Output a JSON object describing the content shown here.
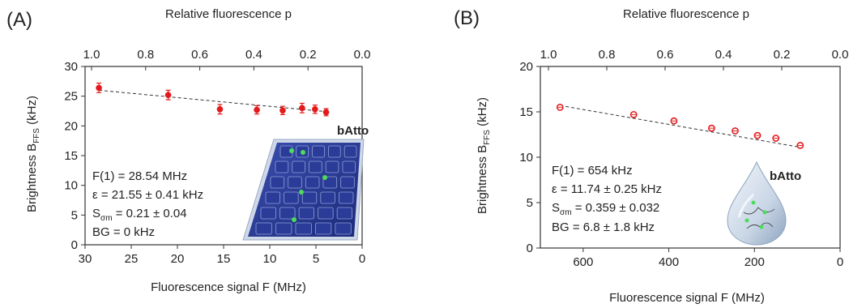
{
  "chart_data": [
    {
      "panel_label": "(A)",
      "type": "scatter",
      "title": "",
      "xlabel": "Fluorescence signal F (MHz)",
      "ylabel_main": "Brightness B",
      "ylabel_sub": "FFS",
      "ylabel_unit": " (kHz)",
      "x2label": "Relative fluorescence p",
      "xlim": [
        30,
        0
      ],
      "ylim": [
        0,
        30
      ],
      "x2lim": [
        1.0,
        0.0
      ],
      "xticks": [
        "30",
        "25",
        "20",
        "15",
        "10",
        "5",
        "0"
      ],
      "xtick_values": [
        30,
        25,
        20,
        15,
        10,
        5,
        0
      ],
      "yticks": [
        "0",
        "5",
        "10",
        "15",
        "20",
        "25",
        "30"
      ],
      "ytick_values": [
        0,
        5,
        10,
        15,
        20,
        25,
        30
      ],
      "x2ticks": [
        "1.0",
        "0.8",
        "0.6",
        "0.4",
        "0.2",
        "0.0"
      ],
      "x2tick_values": [
        1.0,
        0.8,
        0.6,
        0.4,
        0.2,
        0.0
      ],
      "series": [
        {
          "marker": "filled-circle",
          "color": "#e31a1c",
          "x": [
            28.5,
            21.0,
            15.4,
            11.4,
            8.6,
            6.5,
            5.1,
            3.9
          ],
          "y": [
            26.4,
            25.2,
            22.8,
            22.7,
            22.6,
            23.0,
            22.8,
            22.3
          ],
          "yerr": [
            0.8,
            0.8,
            0.8,
            0.7,
            0.7,
            0.8,
            0.7,
            0.6
          ]
        }
      ],
      "fit_line": {
        "x": [
          28.5,
          3.9
        ],
        "y": [
          26.0,
          22.4
        ]
      },
      "annotations": [
        {
          "key": "F(1) = 28.54 MHz"
        },
        {
          "key": "ε = 21.55 ± 0.41 kHz"
        },
        {
          "pre": "S",
          "sub": "σm",
          "post": " = 0.21 ± 0.04"
        },
        {
          "key": "BG = 0 kHz"
        }
      ],
      "inset_label": "bAtto",
      "inset": "lattice-grid"
    },
    {
      "panel_label": "(B)",
      "type": "scatter",
      "title": "",
      "xlabel": "Fluorescence signal F (MHz)",
      "ylabel_main": "Brightness B",
      "ylabel_sub": "FFS",
      "ylabel_unit": " (kHz)",
      "x2label": "Relative fluorescence p",
      "xlim": [
        700,
        0
      ],
      "ylim": [
        0,
        20
      ],
      "x2lim": [
        1.0,
        0.0
      ],
      "xticks": [
        "600",
        "400",
        "200",
        "0"
      ],
      "xtick_values": [
        600,
        400,
        200,
        0
      ],
      "yticks": [
        "0",
        "5",
        "10",
        "15",
        "20"
      ],
      "ytick_values": [
        0,
        5,
        10,
        15,
        20
      ],
      "x2ticks": [
        "1.0",
        "0.8",
        "0.6",
        "0.4",
        "0.2",
        "0.0"
      ],
      "x2tick_values": [
        1.0,
        0.8,
        0.6,
        0.4,
        0.2,
        0.0
      ],
      "series": [
        {
          "marker": "open-circle",
          "color": "#e31a1c",
          "x": [
            654,
            482,
            388,
            300,
            245,
            193,
            150,
            93
          ],
          "y": [
            15.5,
            14.7,
            14.0,
            13.2,
            12.9,
            12.4,
            12.1,
            11.3
          ],
          "yerr": [
            0.15,
            0.15,
            0.15,
            0.15,
            0.15,
            0.15,
            0.15,
            0.15
          ]
        }
      ],
      "fit_line": {
        "x": [
          654,
          93
        ],
        "y": [
          15.7,
          11.1
        ]
      },
      "annotations": [
        {
          "key": "F(1) = 654 kHz"
        },
        {
          "key": "ε = 11.74 ± 0.25 kHz"
        },
        {
          "pre": "S",
          "sub": "σm",
          "post": " = 0.359 ± 0.032"
        },
        {
          "key": "BG = 6.8 ± 1.8 kHz"
        }
      ],
      "inset_label": "bAtto",
      "inset": "droplet"
    }
  ]
}
